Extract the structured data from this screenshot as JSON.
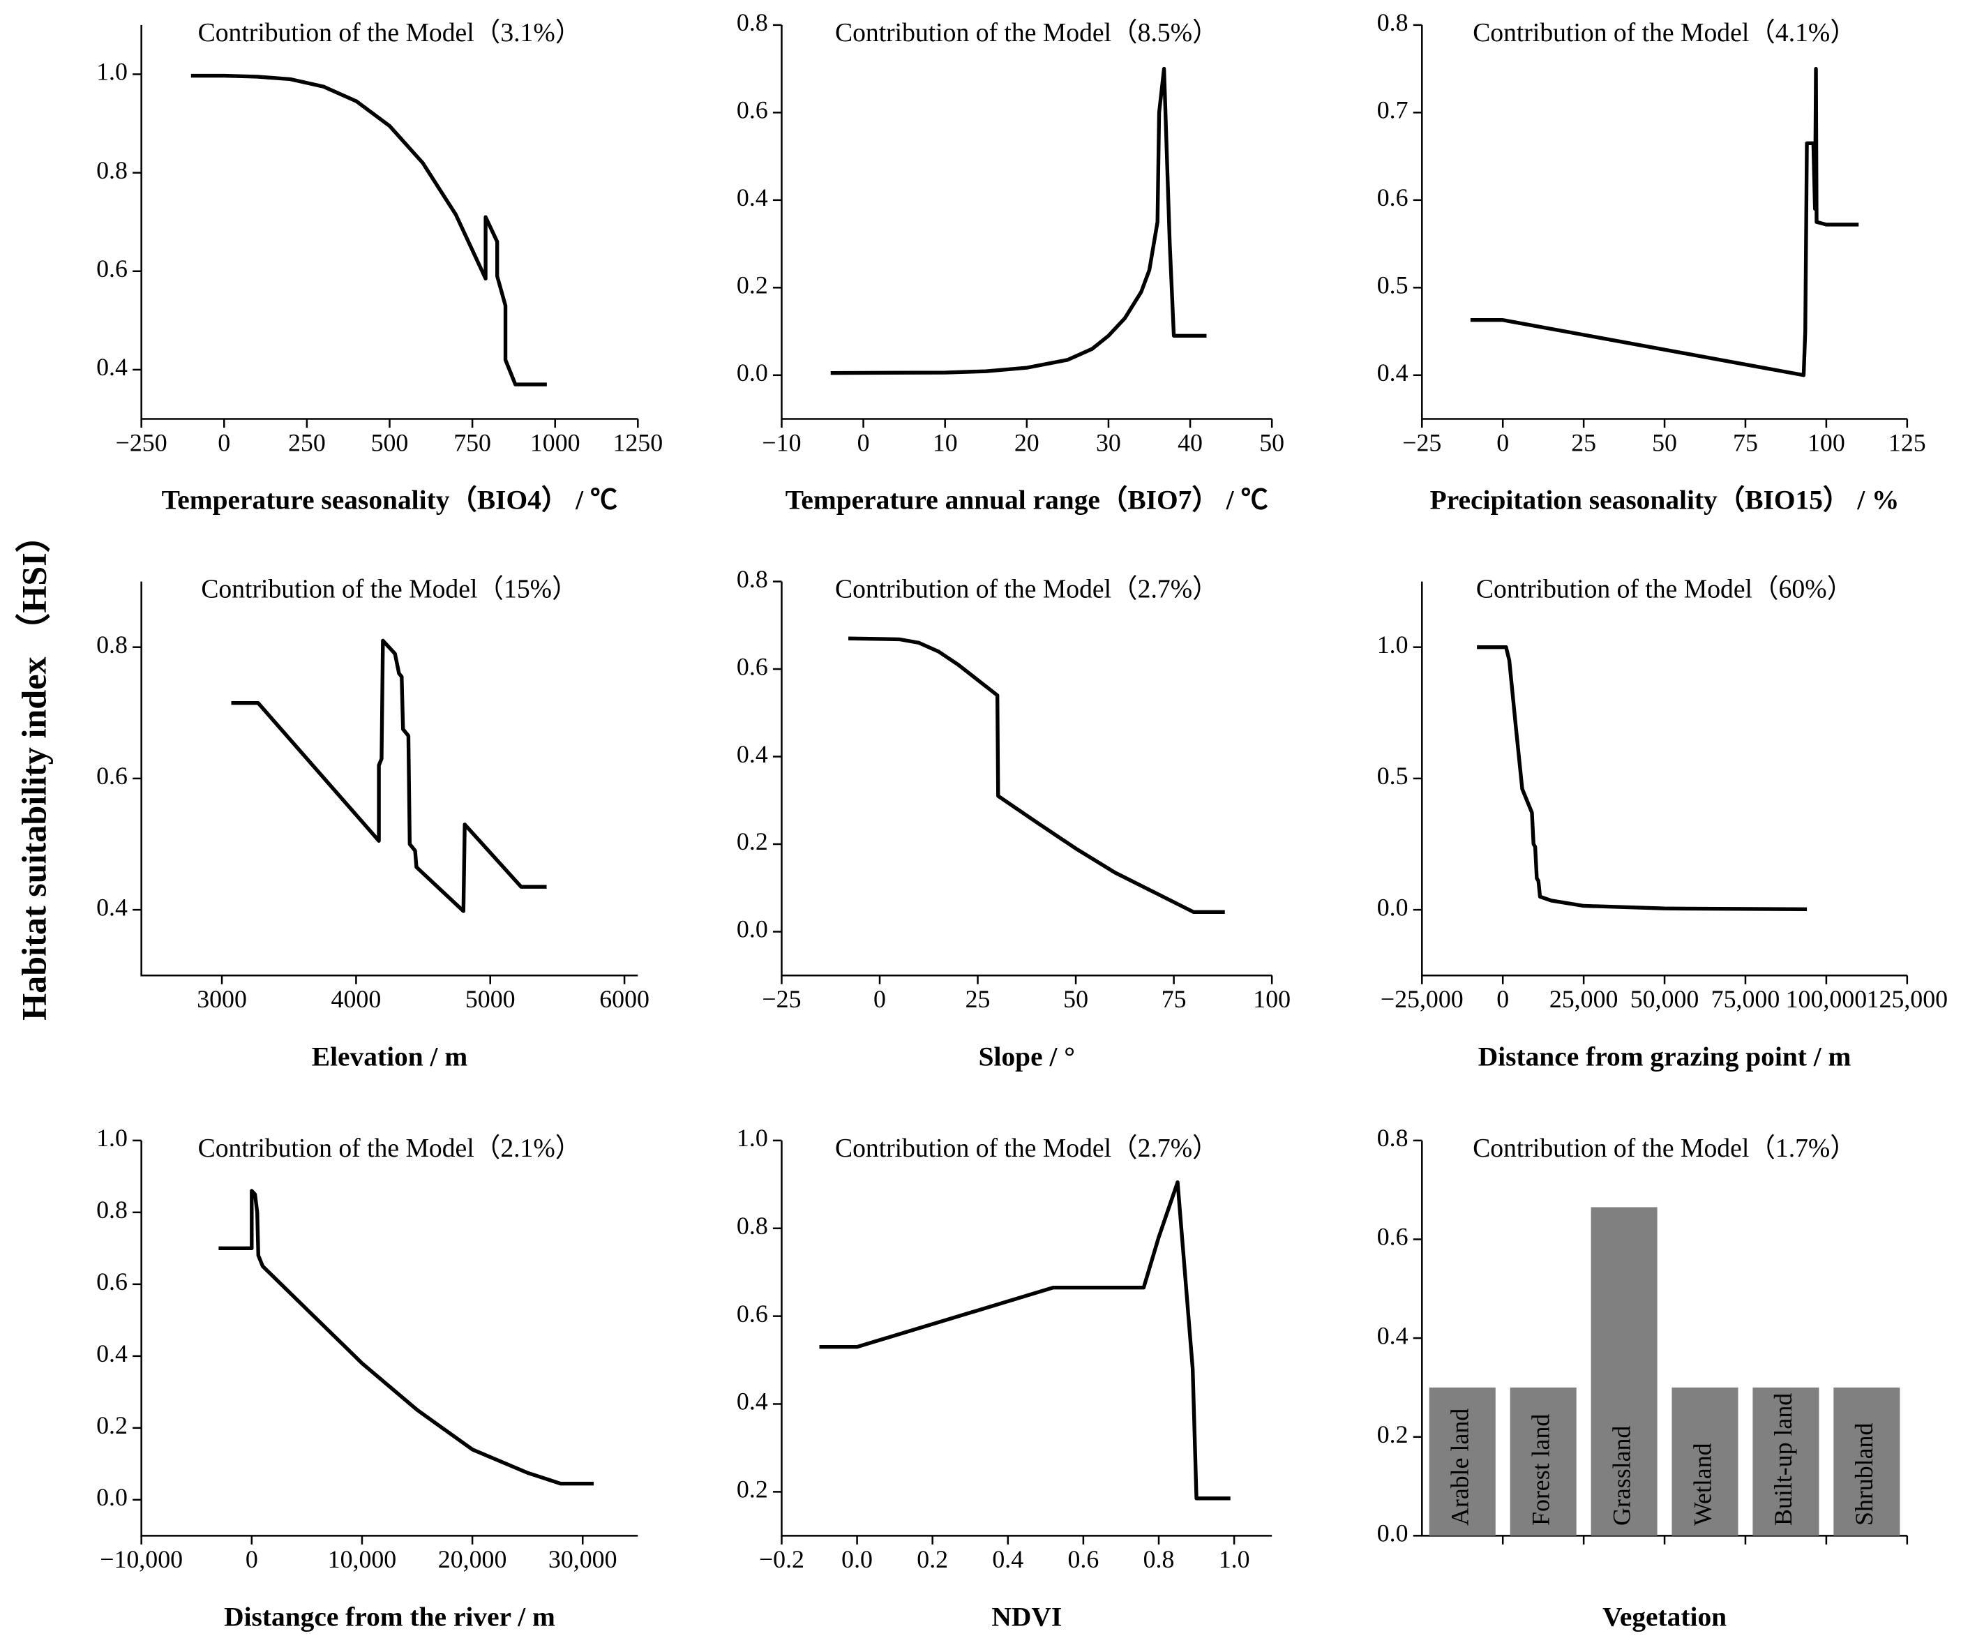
{
  "ylabel": "Habitat suitability index （HSI）",
  "chart_data": [
    {
      "type": "line",
      "title": "Contribution of the Model（3.1%）",
      "xlabel": "Temperature seasonality（BIO4） / ℃",
      "x": [
        -100,
        0,
        100,
        200,
        300,
        400,
        500,
        600,
        700,
        790,
        790,
        825,
        825,
        850,
        850,
        880,
        975
      ],
      "values": [
        0.997,
        0.997,
        0.995,
        0.99,
        0.975,
        0.945,
        0.895,
        0.82,
        0.715,
        0.585,
        0.71,
        0.66,
        0.59,
        0.53,
        0.42,
        0.37,
        0.37
      ],
      "color": "#000000",
      "xlim": [
        -250,
        1250
      ],
      "ylim": [
        0.3,
        1.1
      ],
      "xticks": [
        {
          "value": -250,
          "label": "−250"
        },
        0,
        250,
        500,
        750,
        1000,
        1250
      ],
      "yticks": [
        0.4,
        0.6,
        0.8,
        {
          "value": 1,
          "label": "1.0"
        }
      ]
    },
    {
      "type": "line",
      "title": "Contribution of the Model（8.5%）",
      "xlabel": "Temperature annual range（BIO7） / ℃",
      "x": [
        -4,
        10,
        15,
        20,
        25,
        28,
        30,
        32,
        34,
        35,
        36,
        36.2,
        36.8,
        37.5,
        38,
        42
      ],
      "values": [
        0.005,
        0.006,
        0.009,
        0.017,
        0.035,
        0.06,
        0.09,
        0.13,
        0.19,
        0.24,
        0.35,
        0.6,
        0.7,
        0.3,
        0.09,
        0.09
      ],
      "color": "#000000",
      "xlim": [
        -10,
        50
      ],
      "ylim": [
        -0.1,
        0.8
      ],
      "xticks": [
        {
          "value": -10,
          "label": "−10"
        },
        0,
        10,
        20,
        30,
        40,
        50
      ],
      "yticks": [
        {
          "value": 0,
          "label": "0.0"
        },
        0.2,
        0.4,
        0.6,
        0.8
      ]
    },
    {
      "type": "line",
      "title": "Contribution of the Model（4.1%）",
      "xlabel": "Precipitation seasonality（BIO15） / %",
      "x": [
        -10,
        0,
        93,
        93.5,
        94,
        96,
        96.5,
        96.8,
        97,
        100,
        110
      ],
      "values": [
        0.463,
        0.463,
        0.4,
        0.45,
        0.665,
        0.665,
        0.59,
        0.75,
        0.575,
        0.572,
        0.572
      ],
      "color": "#000000",
      "xlim": [
        -25,
        125
      ],
      "ylim": [
        0.35,
        0.8
      ],
      "xticks": [
        {
          "value": -25,
          "label": "−25"
        },
        0,
        25,
        50,
        75,
        100,
        125
      ],
      "yticks": [
        0.4,
        0.5,
        0.6,
        0.7,
        0.8
      ]
    },
    {
      "type": "line",
      "title": "Contribution of the Model（15%）",
      "xlabel": "Elevation / m",
      "x": [
        3070,
        3270,
        4170,
        4170,
        4190,
        4200,
        4290,
        4320,
        4340,
        4350,
        4390,
        4400,
        4440,
        4450,
        4800,
        4810,
        5230,
        5420
      ],
      "values": [
        0.715,
        0.715,
        0.505,
        0.62,
        0.63,
        0.81,
        0.79,
        0.76,
        0.755,
        0.675,
        0.665,
        0.5,
        0.49,
        0.465,
        0.398,
        0.53,
        0.435,
        0.435
      ],
      "color": "#000000",
      "xlim": [
        2400,
        6100
      ],
      "ylim": [
        0.3,
        0.9
      ],
      "xticks": [
        3000,
        4000,
        5000,
        6000
      ],
      "yticks": [
        0.4,
        0.6,
        0.8
      ]
    },
    {
      "type": "line",
      "title": "Contribution of the Model（2.7%）",
      "xlabel": "Slope / °",
      "x": [
        -8,
        5,
        10,
        15,
        20,
        25,
        30,
        30.2,
        40,
        50,
        60,
        70,
        80,
        88
      ],
      "values": [
        0.67,
        0.668,
        0.66,
        0.64,
        0.61,
        0.575,
        0.54,
        0.31,
        0.25,
        0.19,
        0.135,
        0.09,
        0.045,
        0.045
      ],
      "color": "#000000",
      "xlim": [
        -25,
        100
      ],
      "ylim": [
        -0.1,
        0.8
      ],
      "xticks": [
        {
          "value": -25,
          "label": "−25"
        },
        0,
        25,
        50,
        75,
        100
      ],
      "yticks": [
        {
          "value": 0,
          "label": "0.0"
        },
        0.2,
        0.4,
        0.6,
        0.8
      ]
    },
    {
      "type": "line",
      "title": "Contribution of the Model（60%）",
      "xlabel": "Distance from grazing point / m",
      "x": [
        -8000,
        1000,
        2000,
        4000,
        6000,
        8000,
        9000,
        9500,
        10000,
        10500,
        11000,
        11500,
        15000,
        25000,
        50000,
        94000
      ],
      "values": [
        1,
        1,
        0.95,
        0.7,
        0.46,
        0.4,
        0.37,
        0.25,
        0.24,
        0.12,
        0.11,
        0.05,
        0.035,
        0.015,
        0.005,
        0.002
      ],
      "color": "#000000",
      "xlim": [
        -25000,
        125000
      ],
      "ylim": [
        -0.25,
        1.25
      ],
      "xticks": [
        {
          "value": -25000,
          "label": "−25,000"
        },
        0,
        {
          "value": 25000,
          "label": "25,000"
        },
        {
          "value": 50000,
          "label": "50,000"
        },
        {
          "value": 75000,
          "label": "75,000"
        },
        {
          "value": 100000,
          "label": "100,000"
        },
        {
          "value": 125000,
          "label": "125,000"
        }
      ],
      "yticks": [
        {
          "value": 0,
          "label": "0.0"
        },
        0.5,
        {
          "value": 1,
          "label": "1.0"
        }
      ]
    },
    {
      "type": "line",
      "title": "Contribution of the Model（2.1%）",
      "xlabel": "Distangce from the river / m",
      "x": [
        -3000,
        0,
        0,
        300,
        500,
        600,
        1000,
        5000,
        10000,
        15000,
        20000,
        25000,
        28000,
        31000
      ],
      "values": [
        0.7,
        0.7,
        0.86,
        0.85,
        0.8,
        0.68,
        0.65,
        0.53,
        0.38,
        0.25,
        0.14,
        0.075,
        0.045,
        0.045
      ],
      "color": "#000000",
      "xlim": [
        -10000,
        35000
      ],
      "ylim": [
        -0.1,
        1.0
      ],
      "xticks": [
        {
          "value": -10000,
          "label": "−10,000"
        },
        0,
        {
          "value": 10000,
          "label": "10,000"
        },
        {
          "value": 20000,
          "label": "20,000"
        },
        {
          "value": 30000,
          "label": "30,000"
        }
      ],
      "yticks": [
        {
          "value": 0,
          "label": "0.0"
        },
        0.2,
        0.4,
        0.6,
        0.8,
        {
          "value": 1,
          "label": "1.0"
        }
      ]
    },
    {
      "type": "line",
      "title": "Contribution of the Model（2.7%）",
      "xlabel": "NDVI",
      "x": [
        -0.1,
        0,
        0.52,
        0.76,
        0.8,
        0.85,
        0.89,
        0.9,
        0.99
      ],
      "values": [
        0.53,
        0.53,
        0.665,
        0.665,
        0.78,
        0.905,
        0.48,
        0.185,
        0.185
      ],
      "color": "#000000",
      "xlim": [
        -0.2,
        1.1
      ],
      "ylim": [
        0.1,
        1.0
      ],
      "xticks": [
        {
          "value": -0.2,
          "label": "−0.2"
        },
        {
          "value": 0,
          "label": "0.0"
        },
        0.2,
        0.4,
        0.6,
        0.8,
        {
          "value": 1,
          "label": "1.0"
        }
      ],
      "yticks": [
        0.2,
        0.4,
        0.6,
        0.8,
        {
          "value": 1,
          "label": "1.0"
        }
      ]
    },
    {
      "type": "bar",
      "title": "Contribution of the Model（1.7%）",
      "xlabel": "Vegetation",
      "categories": [
        "Arable land",
        "Forest land",
        "Grassland",
        "Wetland",
        "Built-up land",
        "Shrubland"
      ],
      "values": [
        0.3,
        0.3,
        0.665,
        0.3,
        0.3,
        0.3
      ],
      "color": "#808080",
      "ylim": [
        0,
        0.8
      ],
      "yticks": [
        {
          "value": 0,
          "label": "0.0"
        },
        0.2,
        0.4,
        0.6,
        0.8
      ]
    }
  ]
}
